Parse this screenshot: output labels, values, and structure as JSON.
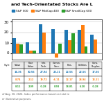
{
  "chart_data": {
    "type": "bar",
    "title": "and Tech-Orientated Stocks Are L",
    "categories": [
      "Value",
      "Pure\nValue",
      "Info.\nTech.",
      "Comm.\nServ.",
      "Fins.",
      "Utilities",
      "Cons.\nStaples"
    ],
    "series": [
      {
        "name": "S&P 500",
        "values": [
          14.36,
          10.56,
          27.94,
          23.11,
          22.56,
          22.56,
          17.66
        ],
        "value_labels": [
          "14.36",
          "10.56",
          "27.94",
          "23.11",
          "22.56",
          "22.56",
          "17.66"
        ]
      },
      {
        "name": "S&P MidCap 400",
        "values": [
          8.74,
          2.12,
          19.72,
          -4.11,
          12.17,
          26.94,
          13.11
        ],
        "value_labels": [
          "8.74",
          "2.12",
          "19.72",
          "-4.11",
          "12.17",
          "26.94",
          "13.11"
        ]
      },
      {
        "name": "S&P SmallCap 600",
        "values": [
          8.11,
          2.09,
          -0.28,
          8.93,
          18.81,
          6.2,
          -0.28
        ],
        "value_labels": [
          "8.11",
          "2.09",
          "-0.28",
          "8.93",
          "18.81",
          "6.20",
          "-0.28"
        ]
      }
    ],
    "ylim": [
      -6,
      32
    ],
    "yticks": [
      0,
      10,
      20,
      30
    ],
    "grid": true,
    "legend": "upper center",
    "tick_labels": "y",
    "row_label": "Style",
    "annotations": [
      "of Aug. 30, 2024. Index performance based on total re",
      "er illustrative purposes."
    ]
  }
}
